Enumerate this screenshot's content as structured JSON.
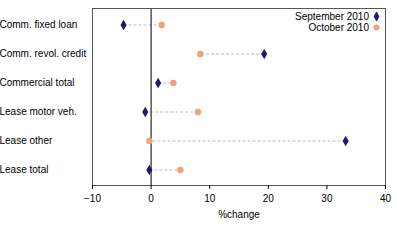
{
  "chart_data": {
    "type": "dot",
    "orientation": "horizontal",
    "legend": "top-right",
    "xlabel": "%change",
    "categories": [
      "Comm. fixed loan",
      "Comm. revol. credit",
      "Commercial total",
      "Lease motor veh.",
      "Lease other",
      "Lease total"
    ],
    "series": [
      {
        "name": "September 2010",
        "color": "#1c1a6b",
        "marker": "diamond",
        "values": [
          -4.7,
          19.3,
          1.2,
          -1.0,
          33.2,
          -0.3
        ]
      },
      {
        "name": "October 2010",
        "color": "#f4a07a",
        "marker": "circle",
        "values": [
          1.8,
          8.4,
          3.8,
          8.0,
          -0.3,
          5.0
        ]
      }
    ],
    "xlim": [
      -10,
      40
    ],
    "xticks": [
      -10,
      0,
      10,
      20,
      30,
      40
    ]
  }
}
